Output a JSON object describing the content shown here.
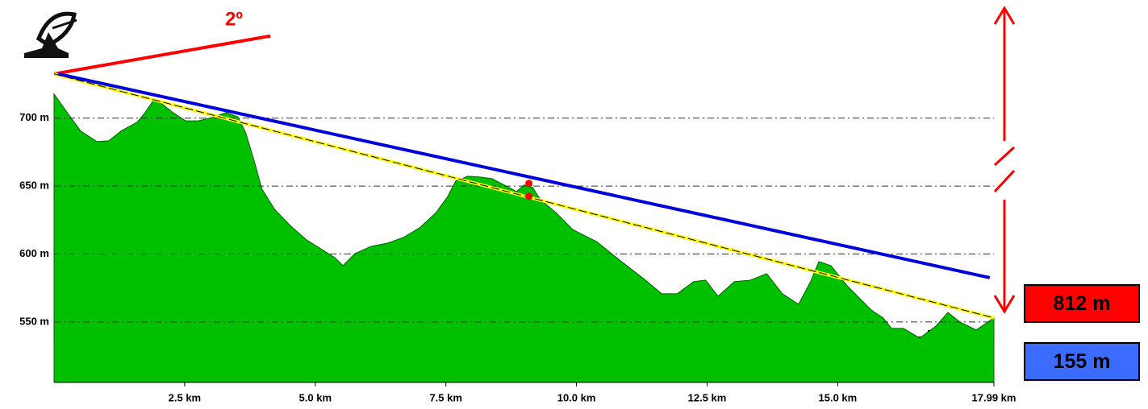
{
  "chart_data": {
    "type": "area",
    "color": "#00c000",
    "xlim": [
      0,
      17.99
    ],
    "ylim": [
      505.5,
      787
    ],
    "grid": true,
    "xticks": [
      {
        "value": 2.5,
        "label": "2.5 km"
      },
      {
        "value": 5,
        "label": "5.0 km"
      },
      {
        "value": 7.5,
        "label": "7.5 km"
      },
      {
        "value": 10,
        "label": "10.0 km"
      },
      {
        "value": 12.5,
        "label": "12.5 km"
      },
      {
        "value": 15,
        "label": "15.0 km"
      },
      {
        "value": 17.99,
        "label": "17.99 km"
      }
    ],
    "yticks": [
      {
        "value": 550,
        "label": "550 m"
      },
      {
        "value": 600,
        "label": "600 m"
      },
      {
        "value": 650,
        "label": "650 m"
      },
      {
        "value": 700,
        "label": "700 m"
      }
    ],
    "x": [
      0,
      0.2,
      0.51,
      0.82,
      1.05,
      1.28,
      1.59,
      1.74,
      1.9,
      2.05,
      2.28,
      2.52,
      2.75,
      2.98,
      3.29,
      3.52,
      3.67,
      3.83,
      3.98,
      4.22,
      4.52,
      4.83,
      5.14,
      5.37,
      5.53,
      5.76,
      6.07,
      6.38,
      6.69,
      7.0,
      7.3,
      7.53,
      7.69,
      7.92,
      8.15,
      8.38,
      8.62,
      8.85,
      9.0,
      9.16,
      9.31,
      9.62,
      9.93,
      10.39,
      10.86,
      11.32,
      11.63,
      11.93,
      12.24,
      12.47,
      12.71,
      13.02,
      13.33,
      13.64,
      13.94,
      14.25,
      14.48,
      14.64,
      14.87,
      15.18,
      15.41,
      15.64,
      15.87,
      16.03,
      16.26,
      16.57,
      16.88,
      17.11,
      17.34,
      17.65,
      17.99
    ],
    "values": [
      717.8,
      707,
      690.5,
      682.8,
      683.4,
      690.5,
      697,
      704,
      713,
      711,
      704,
      698,
      698,
      700,
      704,
      701,
      689,
      668.6,
      647.8,
      633,
      621,
      610.5,
      603,
      597.5,
      591.5,
      600.4,
      605.7,
      608,
      612.3,
      619.4,
      630,
      642,
      653.8,
      657.3,
      656.7,
      655.5,
      650.8,
      646,
      650.8,
      649,
      640,
      630,
      618,
      609,
      594.5,
      580.8,
      570.8,
      570.8,
      579.7,
      580.8,
      569,
      579.7,
      580.8,
      585.6,
      570.8,
      563,
      579.7,
      594.5,
      591.5,
      576.7,
      567.8,
      558.9,
      553,
      545.3,
      545.3,
      538.2,
      547,
      557,
      550,
      544.1,
      553
    ],
    "lines": [
      {
        "color": "#ff0000",
        "x": [
          0,
          4.14
        ],
        "values": [
          732.6,
          760.5
        ]
      },
      {
        "color": "#ffff00",
        "x": [
          0,
          17.99
        ],
        "values": [
          732.6,
          553
        ]
      },
      {
        "color": "#0000dd",
        "x": [
          0.08,
          17.91
        ],
        "values": [
          732.6,
          582.6
        ]
      }
    ],
    "points": {
      "color": "#ff0000",
      "x": [
        9.09,
        9.09
      ],
      "values": [
        652,
        642.5
      ]
    },
    "angle_label": "2º",
    "boxes": [
      {
        "label": "812 m",
        "color": "#ff0000"
      },
      {
        "label": "155 m",
        "color": "#3b6cff"
      }
    ]
  }
}
